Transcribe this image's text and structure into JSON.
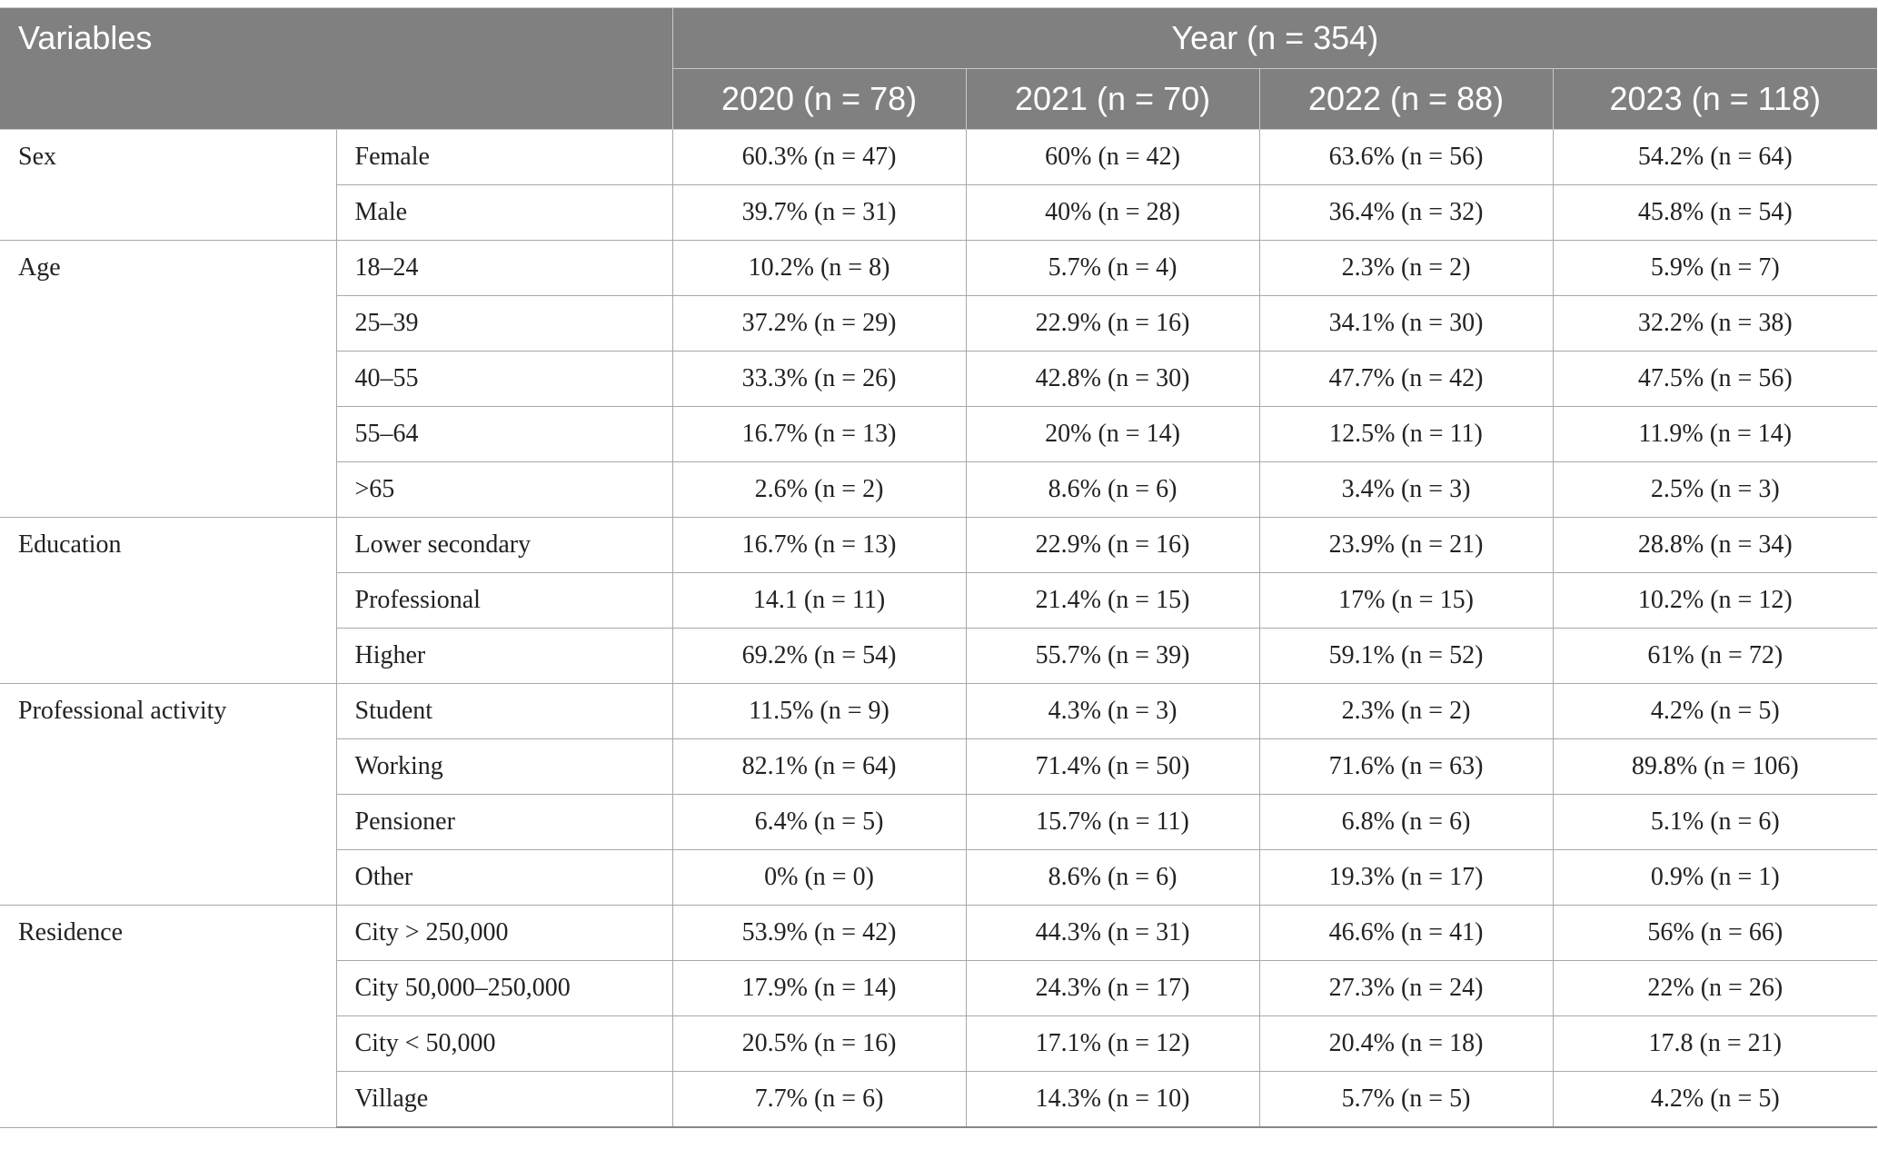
{
  "header": {
    "variables": "Variables",
    "year": "Year (n = 354)",
    "columns": [
      "2020 (n = 78)",
      "2021 (n = 70)",
      "2022 (n = 88)",
      "2023 (n = 118)"
    ]
  },
  "groups": [
    {
      "label": "Sex",
      "rows": [
        {
          "label": "Female",
          "values": [
            "60.3% (n = 47)",
            "60% (n = 42)",
            "63.6% (n = 56)",
            "54.2% (n = 64)"
          ]
        },
        {
          "label": "Male",
          "values": [
            "39.7% (n = 31)",
            "40% (n = 28)",
            "36.4% (n = 32)",
            "45.8% (n = 54)"
          ]
        }
      ]
    },
    {
      "label": "Age",
      "rows": [
        {
          "label": "18–24",
          "values": [
            "10.2% (n = 8)",
            "5.7% (n = 4)",
            "2.3% (n = 2)",
            "5.9% (n = 7)"
          ]
        },
        {
          "label": "25–39",
          "values": [
            "37.2% (n = 29)",
            "22.9% (n = 16)",
            "34.1% (n = 30)",
            "32.2% (n = 38)"
          ]
        },
        {
          "label": "40–55",
          "values": [
            "33.3% (n = 26)",
            "42.8% (n = 30)",
            "47.7% (n = 42)",
            "47.5% (n = 56)"
          ]
        },
        {
          "label": "55–64",
          "values": [
            "16.7% (n = 13)",
            "20% (n = 14)",
            "12.5% (n = 11)",
            "11.9% (n = 14)"
          ]
        },
        {
          "label": ">65",
          "values": [
            "2.6% (n = 2)",
            "8.6% (n = 6)",
            "3.4% (n = 3)",
            "2.5% (n = 3)"
          ]
        }
      ]
    },
    {
      "label": "Education",
      "rows": [
        {
          "label": "Lower secondary",
          "values": [
            "16.7% (n = 13)",
            "22.9% (n = 16)",
            "23.9% (n = 21)",
            "28.8% (n = 34)"
          ]
        },
        {
          "label": "Professional",
          "values": [
            "14.1 (n = 11)",
            "21.4% (n = 15)",
            "17% (n = 15)",
            "10.2% (n = 12)"
          ]
        },
        {
          "label": "Higher",
          "values": [
            "69.2% (n = 54)",
            "55.7% (n = 39)",
            "59.1% (n = 52)",
            "61% (n = 72)"
          ]
        }
      ]
    },
    {
      "label": "Professional activity",
      "rows": [
        {
          "label": "Student",
          "values": [
            "11.5% (n = 9)",
            "4.3% (n = 3)",
            "2.3% (n = 2)",
            "4.2% (n = 5)"
          ]
        },
        {
          "label": "Working",
          "values": [
            "82.1% (n = 64)",
            "71.4% (n = 50)",
            "71.6% (n = 63)",
            "89.8% (n = 106)"
          ]
        },
        {
          "label": "Pensioner",
          "values": [
            "6.4% (n = 5)",
            "15.7% (n = 11)",
            "6.8% (n = 6)",
            "5.1% (n = 6)"
          ]
        },
        {
          "label": "Other",
          "values": [
            "0% (n = 0)",
            "8.6% (n = 6)",
            "19.3% (n = 17)",
            "0.9% (n = 1)"
          ]
        }
      ]
    },
    {
      "label": "Residence",
      "rows": [
        {
          "label": "City > 250,000",
          "values": [
            "53.9% (n = 42)",
            "44.3% (n = 31)",
            "46.6% (n = 41)",
            "56% (n = 66)"
          ]
        },
        {
          "label": "City 50,000–250,000",
          "values": [
            "17.9% (n = 14)",
            "24.3% (n = 17)",
            "27.3% (n = 24)",
            "22% (n = 26)"
          ]
        },
        {
          "label": "City < 50,000",
          "values": [
            "20.5% (n = 16)",
            "17.1% (n = 12)",
            "20.4% (n = 18)",
            "17.8 (n = 21)"
          ]
        },
        {
          "label": "Village",
          "values": [
            "7.7% (n = 6)",
            "14.3% (n = 10)",
            "5.7% (n = 5)",
            "4.2% (n = 5)"
          ]
        }
      ]
    }
  ]
}
